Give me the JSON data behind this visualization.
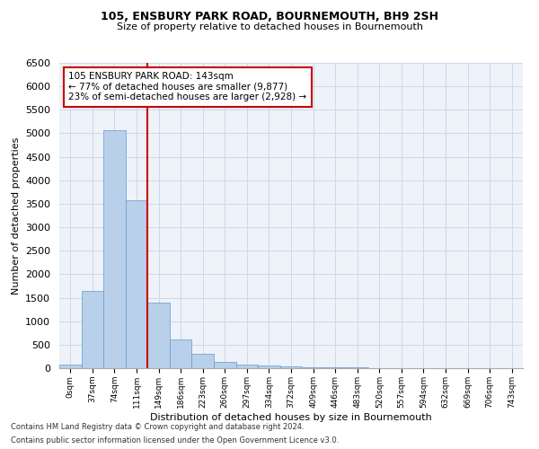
{
  "title1": "105, ENSBURY PARK ROAD, BOURNEMOUTH, BH9 2SH",
  "title2": "Size of property relative to detached houses in Bournemouth",
  "xlabel": "Distribution of detached houses by size in Bournemouth",
  "ylabel": "Number of detached properties",
  "categories": [
    "0sqm",
    "37sqm",
    "74sqm",
    "111sqm",
    "149sqm",
    "186sqm",
    "223sqm",
    "260sqm",
    "297sqm",
    "334sqm",
    "372sqm",
    "409sqm",
    "446sqm",
    "483sqm",
    "520sqm",
    "557sqm",
    "594sqm",
    "632sqm",
    "669sqm",
    "706sqm",
    "743sqm"
  ],
  "bar_values": [
    75,
    1650,
    5060,
    3580,
    1400,
    610,
    300,
    140,
    80,
    50,
    30,
    20,
    15,
    10,
    5,
    5,
    3,
    3,
    2,
    2,
    2
  ],
  "bar_color": "#b8d0ea",
  "bar_edge_color": "#6699cc",
  "annotation_text": "105 ENSBURY PARK ROAD: 143sqm\n← 77% of detached houses are smaller (9,877)\n23% of semi-detached houses are larger (2,928) →",
  "annotation_box_color": "#ffffff",
  "annotation_box_edge_color": "#cc0000",
  "vline_color": "#cc0000",
  "ylim": [
    0,
    6500
  ],
  "yticks": [
    0,
    500,
    1000,
    1500,
    2000,
    2500,
    3000,
    3500,
    4000,
    4500,
    5000,
    5500,
    6000,
    6500
  ],
  "grid_color": "#ccd8ec",
  "bg_color": "#eef2f9",
  "footer1": "Contains HM Land Registry data © Crown copyright and database right 2024.",
  "footer2": "Contains public sector information licensed under the Open Government Licence v3.0."
}
